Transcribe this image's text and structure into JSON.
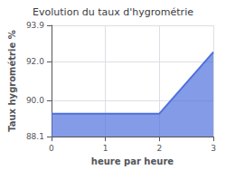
{
  "chart_data": {
    "type": "area",
    "title": "Evolution du taux d'hygrométrie",
    "xlabel": "heure par heure",
    "ylabel": "Taux hygrométrie %",
    "x": [
      0,
      2,
      3
    ],
    "values": [
      89.3,
      89.3,
      92.5
    ],
    "xlim": [
      0,
      3
    ],
    "ylim": [
      88.1,
      93.9
    ],
    "xticks": [
      0,
      1,
      2,
      3
    ],
    "yticks": [
      88.1,
      {
        "value": 90,
        "label": "90.0"
      },
      {
        "value": 92,
        "label": "92.0"
      },
      93.9
    ],
    "grid": true
  }
}
